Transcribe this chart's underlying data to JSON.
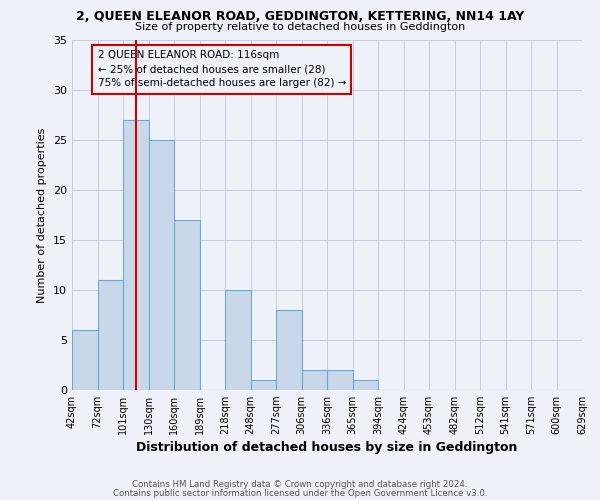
{
  "title1": "2, QUEEN ELEANOR ROAD, GEDDINGTON, KETTERING, NN14 1AY",
  "title2": "Size of property relative to detached houses in Geddington",
  "xlabel": "Distribution of detached houses by size in Geddington",
  "ylabel": "Number of detached properties",
  "bin_labels": [
    "42sqm",
    "72sqm",
    "101sqm",
    "130sqm",
    "160sqm",
    "189sqm",
    "218sqm",
    "248sqm",
    "277sqm",
    "306sqm",
    "336sqm",
    "365sqm",
    "394sqm",
    "424sqm",
    "453sqm",
    "482sqm",
    "512sqm",
    "541sqm",
    "571sqm",
    "600sqm",
    "629sqm"
  ],
  "n_bins": 20,
  "bar_heights": [
    6,
    11,
    27,
    25,
    17,
    0,
    10,
    1,
    8,
    2,
    2,
    1,
    0,
    0,
    0,
    0,
    0,
    0,
    0,
    0
  ],
  "bar_color": "#c8d8e8",
  "bar_edge_color": "#6aaad4",
  "vline_bin": 2.5,
  "vline_color": "#cc0000",
  "annotation_line1": "2 QUEEN ELEANOR ROAD: 116sqm",
  "annotation_line2": "← 25% of detached houses are smaller (28)",
  "annotation_line3": "75% of semi-detached houses are larger (82) →",
  "annotation_box_edge": "#cc0000",
  "ylim": [
    0,
    35
  ],
  "yticks": [
    0,
    5,
    10,
    15,
    20,
    25,
    30,
    35
  ],
  "footer1": "Contains HM Land Registry data © Crown copyright and database right 2024.",
  "footer2": "Contains public sector information licensed under the Open Government Licence v3.0.",
  "bg_color": "#eef2f8",
  "grid_color": "#c5cfe0"
}
